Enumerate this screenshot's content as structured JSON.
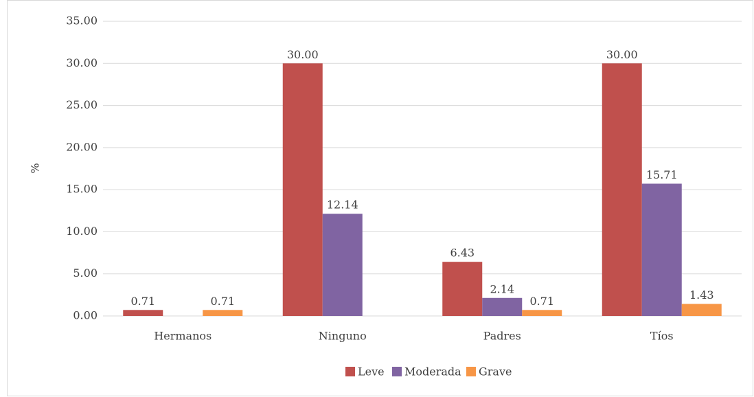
{
  "chart_data": {
    "type": "bar",
    "y_label": "%",
    "categories": [
      "Hermanos",
      "Ninguno",
      "Padres",
      "Tíos"
    ],
    "series": [
      {
        "name": "Leve",
        "color": "#c0504d",
        "values": [
          0.71,
          30,
          6.43,
          30
        ],
        "value_labels": [
          "0.71",
          "30.00",
          "6.43",
          "30.00"
        ]
      },
      {
        "name": "Moderada",
        "color": "#8064a2",
        "values": [
          null,
          12.14,
          2.14,
          15.71
        ],
        "value_labels": [
          null,
          "12.14",
          "2.14",
          "15.71"
        ]
      },
      {
        "name": "Grave",
        "color": "#f79646",
        "values": [
          0.71,
          null,
          0.71,
          1.43
        ],
        "value_labels": [
          "0.71",
          null,
          "0.71",
          "1.43"
        ]
      }
    ],
    "ylim": [
      0,
      35
    ],
    "yticks": [
      {
        "value": 0,
        "label": "0.00"
      },
      {
        "value": 5,
        "label": "5.00"
      },
      {
        "value": 10,
        "label": "10.00"
      },
      {
        "value": 15,
        "label": "15.00"
      },
      {
        "value": 20,
        "label": "20.00"
      },
      {
        "value": 25,
        "label": "25.00"
      },
      {
        "value": 30,
        "label": "30.00"
      },
      {
        "value": 35,
        "label": "35.00"
      }
    ],
    "grid": true,
    "legend": "bottom"
  }
}
